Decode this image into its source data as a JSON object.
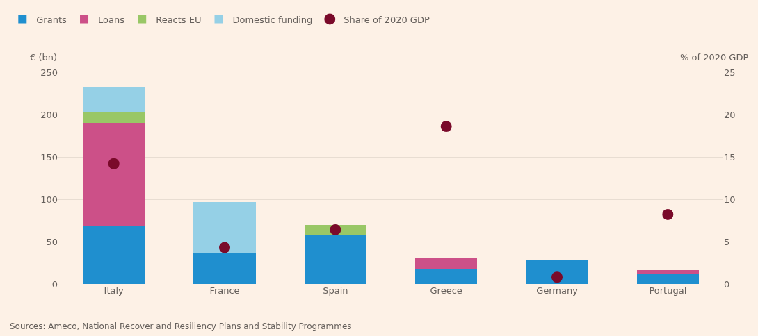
{
  "chart_data": {
    "type": "bar",
    "stacked": true,
    "ylabel": "€ (bn)",
    "y2label": "% of 2020 GDP",
    "categories": [
      "Italy",
      "France",
      "Spain",
      "Greece",
      "Germany",
      "Portugal"
    ],
    "series": [
      {
        "name": "Grants",
        "color": "#1f8fcf",
        "values": [
          68,
          37,
          57,
          17,
          28,
          12
        ]
      },
      {
        "name": "Loans",
        "color": "#cc5088",
        "values": [
          122,
          null,
          null,
          13,
          null,
          4
        ]
      },
      {
        "name": "Reacts EU",
        "color": "#99c766",
        "values": [
          13,
          null,
          13,
          null,
          null,
          null
        ]
      },
      {
        "name": "Domestic funding",
        "color": "#95d0e6",
        "values": [
          30,
          60,
          null,
          null,
          null,
          null
        ]
      },
      {
        "name": "Share of 2020 GDP",
        "type": "scatter",
        "axis": "y2",
        "marker": "circle",
        "color": "#7a0a2a",
        "values": [
          14.2,
          4.3,
          6.4,
          18.6,
          0.8,
          8.2
        ]
      }
    ],
    "ylim": [
      0,
      250
    ],
    "yticks": [
      0,
      50,
      100,
      150,
      200,
      250
    ],
    "y2lim": [
      0,
      25
    ],
    "y2ticks": [
      0,
      5,
      10,
      15,
      20,
      25
    ],
    "grid": "y",
    "legend": "top left",
    "annotations": [
      "Sources: Ameco, National Recover and Resiliency Plans and Stability Programmes"
    ]
  }
}
